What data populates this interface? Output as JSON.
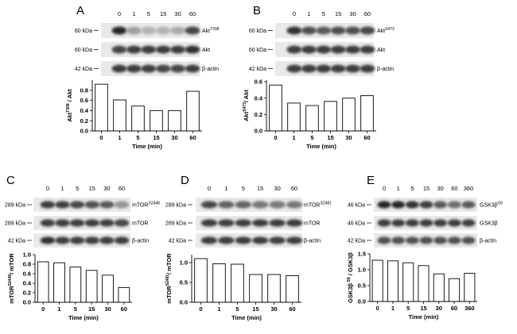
{
  "chart_data": [
    {
      "type": "bar",
      "panel": "A",
      "lanes": [
        "0",
        "1",
        "5",
        "15",
        "30",
        "60"
      ],
      "blots": [
        {
          "kda": "60 kDa",
          "marker": "Akt",
          "sup": "T308"
        },
        {
          "kda": "60 kDa",
          "marker": "Akt",
          "sup": ""
        },
        {
          "kda": "42 kDa",
          "marker": "β-actin",
          "sup": ""
        }
      ],
      "categories": [
        "0",
        "1",
        "5",
        "15",
        "30",
        "60"
      ],
      "values": [
        0.92,
        0.61,
        0.49,
        0.4,
        0.4,
        0.78
      ],
      "ylabel_main": "Akt",
      "ylabel_sup": "T308",
      "ylabel_tail": " / Akt",
      "xlabel": "Time (min)",
      "ylim": [
        0,
        1.0
      ],
      "yticks": [
        "0.0",
        "0.2",
        "0.4",
        "0.6",
        "0.8"
      ],
      "ytick_values": [
        0,
        0.2,
        0.4,
        0.6,
        0.8
      ]
    },
    {
      "type": "bar",
      "panel": "B",
      "lanes": [
        "0",
        "1",
        "5",
        "15",
        "30",
        "60"
      ],
      "blots": [
        {
          "kda": "60 kDa",
          "marker": "Akt",
          "sup": "S473"
        },
        {
          "kda": "60 kDa",
          "marker": "Akt",
          "sup": ""
        },
        {
          "kda": "42 kDa",
          "marker": "β-actin",
          "sup": ""
        }
      ],
      "categories": [
        "0",
        "1",
        "5",
        "15",
        "30",
        "60"
      ],
      "values": [
        0.56,
        0.34,
        0.31,
        0.36,
        0.4,
        0.43
      ],
      "ylabel_main": "Akt",
      "ylabel_sup": "S473",
      "ylabel_tail": "/ Akt",
      "xlabel": "Time (min)",
      "ylim": [
        0,
        0.62
      ],
      "yticks": [
        "0.0",
        "0.2",
        "0.4",
        "0.6"
      ],
      "ytick_values": [
        0,
        0.2,
        0.4,
        0.6
      ]
    },
    {
      "type": "bar",
      "panel": "C",
      "lanes": [
        "0",
        "1",
        "5",
        "15",
        "30",
        "60"
      ],
      "blots": [
        {
          "kda": "289 kDa",
          "marker": "mTOR",
          "sup": "S2448"
        },
        {
          "kda": "289 kDa",
          "marker": "mTOR",
          "sup": ""
        },
        {
          "kda": "42 kDa",
          "marker": "β-actin",
          "sup": ""
        }
      ],
      "categories": [
        "0",
        "1",
        "5",
        "15",
        "30",
        "60"
      ],
      "values": [
        0.85,
        0.83,
        0.74,
        0.67,
        0.57,
        0.31
      ],
      "ylabel_main": "mTOR",
      "ylabel_sup": "S2448",
      "ylabel_tail": "/ mTOR",
      "xlabel": "Time (min)",
      "ylim": [
        0,
        1.0
      ],
      "yticks": [
        "0.0",
        "0.2",
        "0.4",
        "0.6",
        "0.8",
        "1.0"
      ],
      "ytick_values": [
        0,
        0.2,
        0.4,
        0.6,
        0.8,
        1.0
      ]
    },
    {
      "type": "bar",
      "panel": "D",
      "lanes": [
        "0",
        "1",
        "5",
        "15",
        "30",
        "60"
      ],
      "blots": [
        {
          "kda": "289 kDa",
          "marker": "mTOR",
          "sup": "S2481"
        },
        {
          "kda": "289 kDa",
          "marker": "mTOR",
          "sup": ""
        },
        {
          "kda": "42 kDa",
          "marker": "β-actin",
          "sup": ""
        }
      ],
      "categories": [
        "0",
        "1",
        "5",
        "15",
        "30",
        "60"
      ],
      "values": [
        1.1,
        0.97,
        0.96,
        0.7,
        0.7,
        0.67
      ],
      "ylabel_main": "mTOR",
      "ylabel_sup": "S2481",
      "ylabel_tail": "/ mTOR",
      "xlabel": "Time (min)",
      "ylim": [
        0,
        1.2
      ],
      "yticks": [
        "0.0",
        "0.5",
        "1.0"
      ],
      "ytick_values": [
        0,
        0.5,
        1.0
      ]
    },
    {
      "type": "bar",
      "panel": "E",
      "lanes": [
        "0",
        "1",
        "5",
        "15",
        "30",
        "60",
        "360"
      ],
      "blots": [
        {
          "kda": "46 kDa",
          "marker": "GSK3β",
          "sup": "S9"
        },
        {
          "kda": "46 kDa",
          "marker": "GSK3β",
          "sup": ""
        },
        {
          "kda": "42 kDa",
          "marker": "β-actin",
          "sup": ""
        }
      ],
      "categories": [
        "0",
        "1",
        "5",
        "15",
        "30",
        "60",
        "360"
      ],
      "values": [
        1.3,
        1.28,
        1.22,
        1.13,
        0.87,
        0.72,
        0.89
      ],
      "ylabel_main": "GSK3β",
      "ylabel_sup": " S9",
      "ylabel_tail": " / GSK3β",
      "xlabel": "Time (min)",
      "ylim": [
        0,
        1.5
      ],
      "yticks": [
        "0.0",
        "0.5",
        "1.0",
        "1.5"
      ],
      "ytick_values": [
        0,
        0.5,
        1.0,
        1.5
      ]
    }
  ]
}
